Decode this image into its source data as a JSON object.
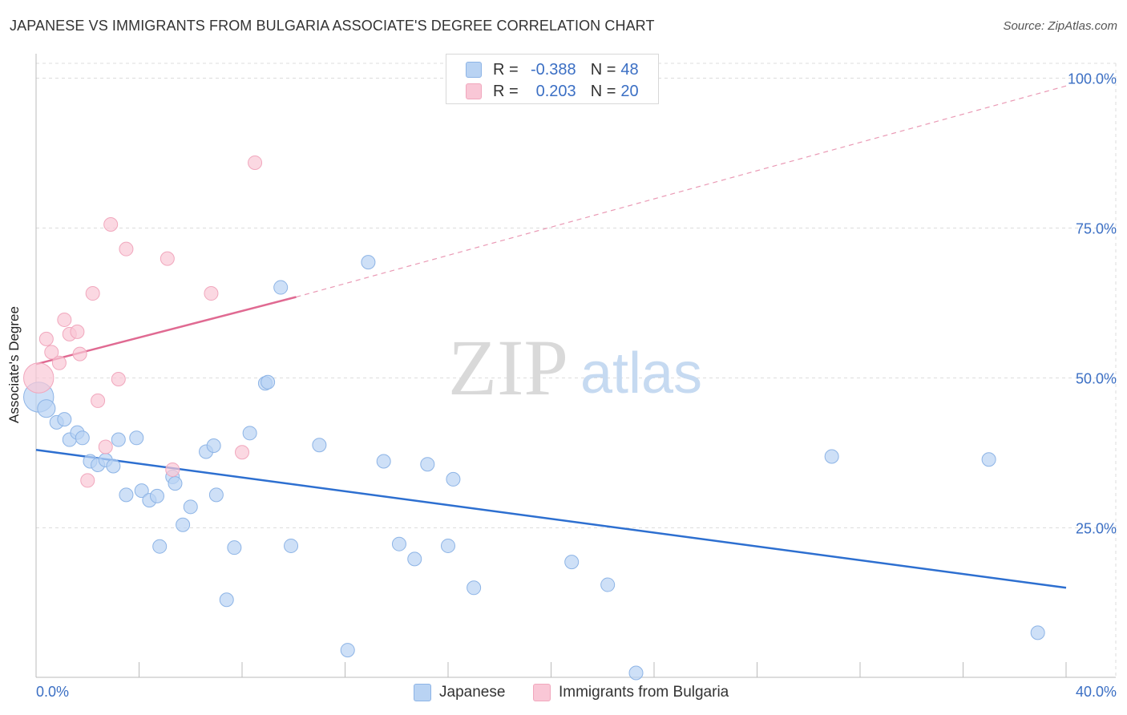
{
  "title": "JAPANESE VS IMMIGRANTS FROM BULGARIA ASSOCIATE'S DEGREE CORRELATION CHART",
  "source": "Source: ZipAtlas.com",
  "watermark": {
    "zip": "ZIP",
    "atlas": "atlas"
  },
  "colors": {
    "blue_fill": "#b9d3f3",
    "blue_stroke": "#8db4e6",
    "blue_line": "#2d6fd0",
    "pink_fill": "#f9c7d6",
    "pink_stroke": "#f1a7bd",
    "pink_line": "#e06a92",
    "axis_label": "#3b6fc4",
    "grid": "#dddddd"
  },
  "legend_top": {
    "rows": [
      {
        "r_label": "R =",
        "r_value": "-0.388",
        "n_label": "N =",
        "n_value": "48"
      },
      {
        "r_label": "R =",
        "r_value": "0.203",
        "n_label": "N =",
        "n_value": "20"
      }
    ]
  },
  "legend_bottom": {
    "series1": "Japanese",
    "series2": "Immigrants from Bulgaria"
  },
  "chart_data": {
    "type": "scatter",
    "title": "JAPANESE VS IMMIGRANTS FROM BULGARIA ASSOCIATE'S DEGREE CORRELATION CHART",
    "xlabel": "",
    "ylabel": "Associate's Degree",
    "xlim": [
      0,
      40
    ],
    "ylim": [
      0,
      100
    ],
    "x_tick_labels": [
      "0.0%",
      "40.0%"
    ],
    "y_ticks": [
      25,
      50,
      75,
      100
    ],
    "y_tick_labels": [
      "25.0%",
      "50.0%",
      "75.0%",
      "100.0%"
    ],
    "grid": true,
    "series": [
      {
        "name": "Japanese",
        "color": "#b9d3f3",
        "points": [
          [
            0.1,
            46.8,
            2.2
          ],
          [
            0.4,
            44.9,
            1.3
          ],
          [
            0.8,
            42.6,
            1
          ],
          [
            1.1,
            43.1,
            1
          ],
          [
            1.3,
            39.7,
            1
          ],
          [
            1.6,
            40.9,
            1
          ],
          [
            1.8,
            40.0,
            1
          ],
          [
            2.1,
            36.1,
            1
          ],
          [
            2.4,
            35.5,
            1
          ],
          [
            2.7,
            36.3,
            1
          ],
          [
            3.0,
            35.3,
            1
          ],
          [
            3.2,
            39.7,
            1
          ],
          [
            3.5,
            30.5,
            1
          ],
          [
            3.9,
            40.0,
            1
          ],
          [
            4.1,
            31.2,
            1
          ],
          [
            4.4,
            29.6,
            1
          ],
          [
            4.7,
            30.3,
            1
          ],
          [
            4.8,
            21.9,
            1
          ],
          [
            5.3,
            33.5,
            1
          ],
          [
            5.4,
            32.4,
            1
          ],
          [
            5.7,
            25.5,
            1
          ],
          [
            6.0,
            28.5,
            1
          ],
          [
            6.6,
            37.7,
            1
          ],
          [
            6.9,
            38.7,
            1
          ],
          [
            7.0,
            30.5,
            1
          ],
          [
            7.4,
            13.0,
            1
          ],
          [
            7.7,
            21.7,
            1
          ],
          [
            8.3,
            40.8,
            1
          ],
          [
            8.9,
            49.1,
            1
          ],
          [
            9.0,
            49.3,
            1
          ],
          [
            9.5,
            65.1,
            1
          ],
          [
            9.9,
            22.0,
            1
          ],
          [
            11.0,
            38.8,
            1
          ],
          [
            12.1,
            4.6,
            1
          ],
          [
            12.9,
            69.3,
            1
          ],
          [
            13.5,
            36.1,
            1
          ],
          [
            14.1,
            22.3,
            1
          ],
          [
            14.7,
            19.8,
            1
          ],
          [
            15.2,
            35.6,
            1
          ],
          [
            16.0,
            22.0,
            1
          ],
          [
            16.2,
            33.1,
            1
          ],
          [
            17.0,
            15.0,
            1
          ],
          [
            20.8,
            19.3,
            1
          ],
          [
            22.2,
            15.5,
            1
          ],
          [
            23.3,
            0.8,
            1
          ],
          [
            30.9,
            36.9,
            1
          ],
          [
            37.0,
            36.4,
            1
          ],
          [
            38.9,
            7.5,
            1
          ]
        ]
      },
      {
        "name": "Immigrants from Bulgaria",
        "color": "#f9c7d6",
        "points": [
          [
            0.1,
            50.0,
            2.2
          ],
          [
            0.4,
            56.5,
            1
          ],
          [
            0.6,
            54.3,
            1
          ],
          [
            0.9,
            52.5,
            1
          ],
          [
            1.1,
            59.7,
            1
          ],
          [
            1.3,
            57.3,
            1
          ],
          [
            1.6,
            57.7,
            1
          ],
          [
            1.7,
            54.0,
            1
          ],
          [
            2.0,
            32.9,
            1
          ],
          [
            2.2,
            64.1,
            1
          ],
          [
            2.4,
            46.2,
            1
          ],
          [
            2.7,
            38.5,
            1
          ],
          [
            2.9,
            75.6,
            1
          ],
          [
            3.2,
            49.8,
            1
          ],
          [
            3.5,
            71.5,
            1
          ],
          [
            5.1,
            69.9,
            1
          ],
          [
            5.3,
            34.7,
            1
          ],
          [
            6.8,
            64.1,
            1
          ],
          [
            8.0,
            37.6,
            1
          ],
          [
            8.5,
            85.9,
            1
          ]
        ]
      }
    ],
    "trend_lines": [
      {
        "series": "Japanese",
        "from": [
          0,
          38.0
        ],
        "to": [
          40,
          15.0
        ],
        "style": "solid"
      },
      {
        "series": "Immigrants from Bulgaria",
        "solid_from": [
          0,
          52.3
        ],
        "solid_to": [
          10.1,
          63.5
        ],
        "dashed_to": [
          40,
          98.7
        ]
      }
    ]
  }
}
